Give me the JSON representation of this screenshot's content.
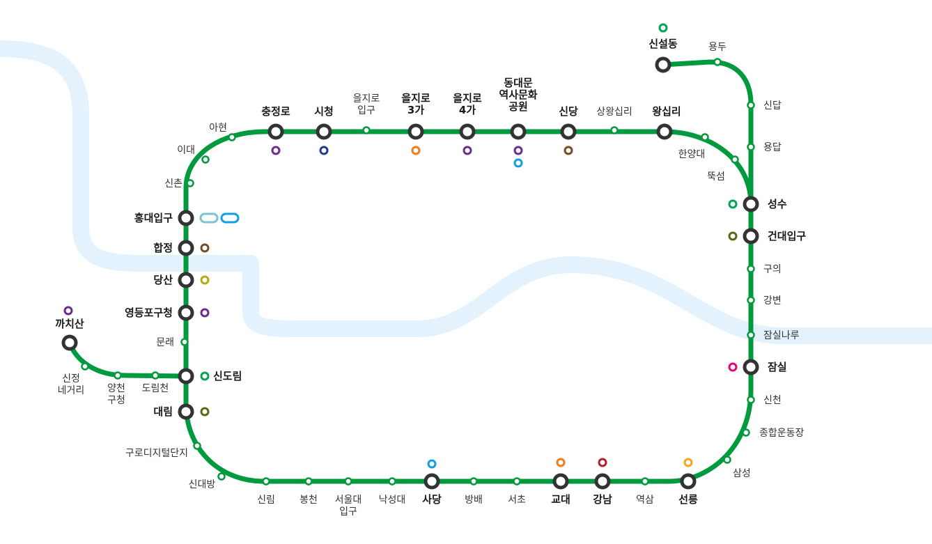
{
  "map": {
    "line_color": "#009a3e",
    "river_color": "#e3f2fc",
    "major_station_stroke": "#333333",
    "stations": [
      {
        "id": "sinseoldong",
        "label": "신설동",
        "major": true
      },
      {
        "id": "yongdu",
        "label": "용두",
        "major": false
      },
      {
        "id": "sindap",
        "label": "신답",
        "major": false
      },
      {
        "id": "yongdap",
        "label": "용답",
        "major": false
      },
      {
        "id": "seongsu",
        "label": "성수",
        "major": true
      },
      {
        "id": "konkuk",
        "label": "건대입구",
        "major": true
      },
      {
        "id": "guui",
        "label": "구의",
        "major": false
      },
      {
        "id": "gangbyeon",
        "label": "강변",
        "major": false
      },
      {
        "id": "jamsilnaru",
        "label": "잠실나루",
        "major": false
      },
      {
        "id": "jamsil",
        "label": "잠실",
        "major": true
      },
      {
        "id": "sincheon",
        "label": "신천",
        "major": false
      },
      {
        "id": "sports",
        "label": "종합운동장",
        "major": false
      },
      {
        "id": "samseong",
        "label": "삼성",
        "major": false
      },
      {
        "id": "seolleung",
        "label": "선릉",
        "major": true
      },
      {
        "id": "yeoksam",
        "label": "역삼",
        "major": false
      },
      {
        "id": "gangnam",
        "label": "강남",
        "major": true
      },
      {
        "id": "gyodae",
        "label": "교대",
        "major": true
      },
      {
        "id": "seocho",
        "label": "서초",
        "major": false
      },
      {
        "id": "bangbae",
        "label": "방배",
        "major": false
      },
      {
        "id": "sadang",
        "label": "사당",
        "major": true
      },
      {
        "id": "nakseongdae",
        "label": "낙성대",
        "major": false
      },
      {
        "id": "snu",
        "label": "서울대\n입구",
        "major": false
      },
      {
        "id": "bongcheon",
        "label": "봉천",
        "major": false
      },
      {
        "id": "sillim",
        "label": "신림",
        "major": false
      },
      {
        "id": "sindaebang",
        "label": "신대방",
        "major": false
      },
      {
        "id": "guro_digital",
        "label": "구로디지털단지",
        "major": false
      },
      {
        "id": "daerim",
        "label": "대림",
        "major": true
      },
      {
        "id": "sindorim",
        "label": "신도림",
        "major": true
      },
      {
        "id": "mullae",
        "label": "문래",
        "major": false
      },
      {
        "id": "ydp_office",
        "label": "영등포구청",
        "major": true
      },
      {
        "id": "dangsan",
        "label": "당산",
        "major": true
      },
      {
        "id": "hapjeong",
        "label": "합정",
        "major": true
      },
      {
        "id": "hongdae",
        "label": "홍대입구",
        "major": true
      },
      {
        "id": "sinchon",
        "label": "신촌",
        "major": false
      },
      {
        "id": "ewha",
        "label": "이대",
        "major": false
      },
      {
        "id": "ahyeon",
        "label": "아현",
        "major": false
      },
      {
        "id": "chungjeongno",
        "label": "충정로",
        "major": true
      },
      {
        "id": "cityhall",
        "label": "시청",
        "major": true
      },
      {
        "id": "euljiro1",
        "label": "을지로\n입구",
        "major": false
      },
      {
        "id": "euljiro3",
        "label": "을지로\n3가",
        "major": true
      },
      {
        "id": "euljiro4",
        "label": "을지로\n4가",
        "major": true
      },
      {
        "id": "ddp",
        "label": "동대문\n역사문화\n공원",
        "major": true
      },
      {
        "id": "sindang",
        "label": "신당",
        "major": true
      },
      {
        "id": "sangwangsimni",
        "label": "상왕십리",
        "major": false
      },
      {
        "id": "wangsimni",
        "label": "왕십리",
        "major": true
      },
      {
        "id": "hanyang",
        "label": "한양대",
        "major": false
      },
      {
        "id": "ttukseom",
        "label": "뚝섬",
        "major": false
      },
      {
        "id": "kkachisan",
        "label": "까치산",
        "major": true
      },
      {
        "id": "sinjeong",
        "label": "신정\n네거리",
        "major": false
      },
      {
        "id": "yangcheon",
        "label": "양천\n구청",
        "major": false
      },
      {
        "id": "dorimcheon",
        "label": "도림천",
        "major": false
      }
    ],
    "transfers": [
      {
        "station": "chungjeongno",
        "lines": [
          "#6b2c91"
        ]
      },
      {
        "station": "cityhall",
        "lines": [
          "#1f3c8f"
        ]
      },
      {
        "station": "euljiro3",
        "lines": [
          "#ef7c1c"
        ]
      },
      {
        "station": "euljiro4",
        "lines": [
          "#6b2c91"
        ]
      },
      {
        "station": "ddp",
        "lines": [
          "#6b2c91",
          "#0fa0de"
        ]
      },
      {
        "station": "sindang",
        "lines": [
          "#754c24"
        ]
      },
      {
        "station": "sinseoldong",
        "lines": [
          "#00a651"
        ]
      },
      {
        "station": "seongsu",
        "lines": [
          "#00a651"
        ]
      },
      {
        "station": "konkuk",
        "lines": [
          "#556b10"
        ]
      },
      {
        "station": "jamsil",
        "lines": [
          "#e6007e"
        ]
      },
      {
        "station": "seolleung",
        "lines": [
          "#f5a623"
        ]
      },
      {
        "station": "gangnam",
        "lines": [
          "#b5202e"
        ]
      },
      {
        "station": "gyodae",
        "lines": [
          "#ef7c1c"
        ]
      },
      {
        "station": "sadang",
        "lines": [
          "#0fa0de"
        ]
      },
      {
        "station": "hongdae",
        "lines": [
          "#77c4d3",
          "#0fa0de"
        ]
      },
      {
        "station": "hapjeong",
        "lines": [
          "#754c24"
        ]
      },
      {
        "station": "dangsan",
        "lines": [
          "#b8a812"
        ]
      },
      {
        "station": "ydp_office",
        "lines": [
          "#6b2c91"
        ]
      },
      {
        "station": "sindorim",
        "lines": [
          "#00a651"
        ]
      },
      {
        "station": "daerim",
        "lines": [
          "#556b10"
        ]
      },
      {
        "station": "kkachisan",
        "lines": [
          "#6b2c91"
        ]
      }
    ]
  }
}
